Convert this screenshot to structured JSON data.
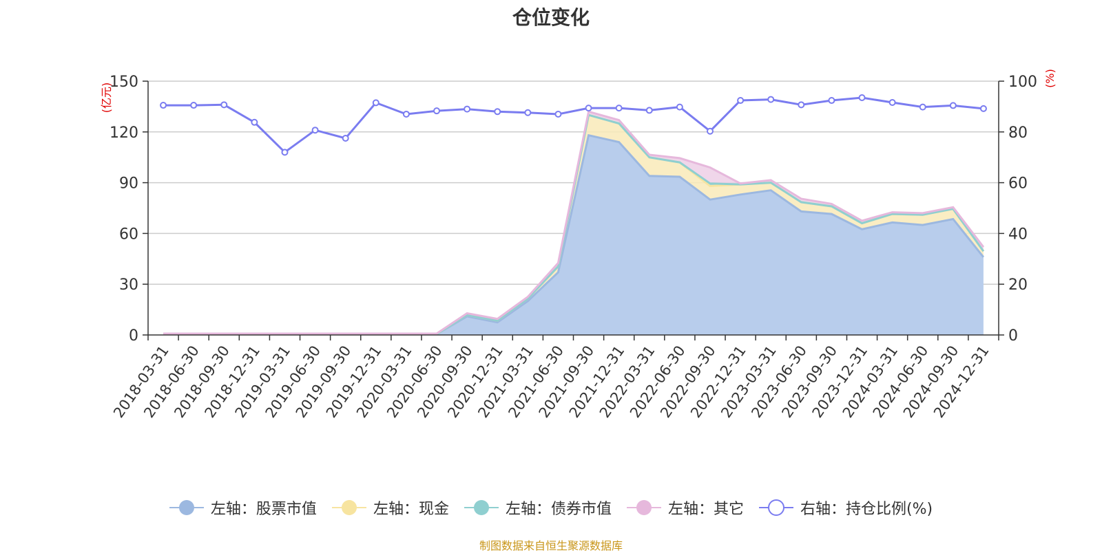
{
  "source_note": "制图数据来自恒生聚源数据库",
  "colors": {
    "stock": "#9cb8e0",
    "stock_fill": "#b8cdec",
    "cash": "#f7e4a0",
    "cash_fill": "#f9eab8",
    "bond": "#8fcfd0",
    "other": "#e6b8dc",
    "other_fill": "#edcfe6",
    "ratio": "#7a7cf0",
    "axis_unit": "#e00000"
  },
  "chart_data": {
    "type": "area",
    "title": "仓位变化",
    "y_left_label": "(亿元)",
    "y_right_label": "(%)",
    "y_left_range": [
      0,
      150
    ],
    "y_left_ticks": [
      0,
      30,
      60,
      90,
      120,
      150
    ],
    "y_right_range": [
      0,
      100
    ],
    "y_right_ticks": [
      0,
      20,
      40,
      60,
      80,
      100
    ],
    "grid": true,
    "legend_position": "bottom",
    "categories": [
      "2018-03-31",
      "2018-06-30",
      "2018-09-30",
      "2018-12-31",
      "2019-03-31",
      "2019-06-30",
      "2019-09-30",
      "2019-12-31",
      "2020-03-31",
      "2020-06-30",
      "2020-09-30",
      "2020-12-31",
      "2021-03-31",
      "2021-06-30",
      "2021-09-30",
      "2021-12-31",
      "2022-03-31",
      "2022-06-30",
      "2022-09-30",
      "2022-12-31",
      "2023-03-31",
      "2023-06-30",
      "2023-09-30",
      "2023-12-31",
      "2024-03-31",
      "2024-06-30",
      "2024-09-30",
      "2024-12-31"
    ],
    "series": [
      {
        "name": "左轴：股票市值",
        "axis": "left",
        "stack": true,
        "values": [
          0.5,
          0.5,
          0.5,
          0.5,
          0.5,
          0.5,
          0.5,
          0.5,
          0.5,
          0.5,
          11,
          7.5,
          20,
          37,
          118,
          114,
          94,
          93.5,
          80,
          83,
          85.5,
          73,
          71.5,
          62.5,
          66.5,
          65,
          68.5,
          46
        ]
      },
      {
        "name": "左轴：现金",
        "axis": "left",
        "stack": true,
        "values": [
          0,
          0,
          0,
          0,
          0,
          0,
          0,
          0,
          0,
          0,
          0.8,
          1,
          1.5,
          3.5,
          12,
          11,
          11,
          8.5,
          8,
          6,
          4.5,
          5.5,
          4.5,
          3.5,
          5,
          6,
          6,
          3.5
        ]
      },
      {
        "name": "左轴：债券市值",
        "axis": "left",
        "stack": true,
        "values": [
          0,
          0,
          0,
          0,
          0,
          0,
          0,
          0,
          0,
          0,
          0,
          0,
          0,
          0,
          0,
          0,
          0,
          0,
          1.5,
          0,
          0,
          0,
          0,
          0,
          0,
          0,
          0,
          0
        ]
      },
      {
        "name": "左轴：其它",
        "axis": "left",
        "stack": true,
        "values": [
          0.3,
          0.3,
          0.3,
          0.3,
          0.3,
          0.3,
          0.3,
          0.3,
          0.3,
          0.3,
          1,
          1,
          1,
          2,
          2,
          2,
          1.5,
          2.5,
          9.5,
          0.5,
          1.5,
          2,
          1.5,
          1.5,
          1,
          1,
          1,
          2.5
        ]
      },
      {
        "name": "右轴：持仓比例(%)",
        "axis": "right",
        "type": "line",
        "values": [
          90.5,
          90.5,
          90.7,
          83.8,
          72,
          80.7,
          77.5,
          91.5,
          87,
          88.3,
          89,
          88,
          87.6,
          87,
          89.4,
          89.4,
          88.5,
          89.8,
          80.3,
          92.4,
          92.8,
          90.7,
          92.4,
          93.5,
          91.6,
          89.8,
          90.4,
          89.2
        ]
      }
    ]
  }
}
